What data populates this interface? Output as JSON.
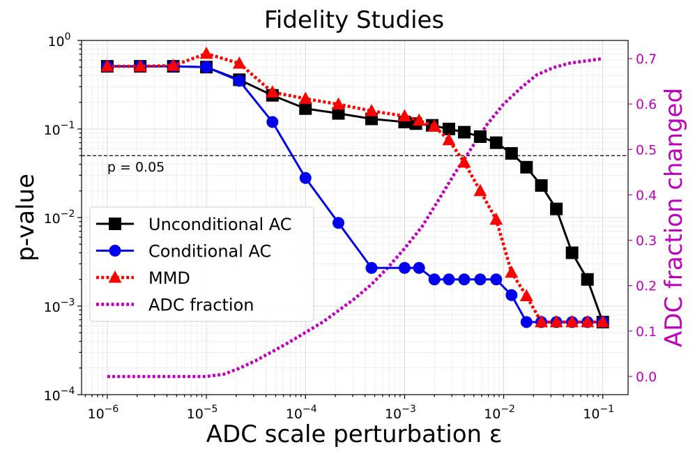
{
  "chart_data": {
    "type": "line",
    "title": "Fidelity Studies",
    "xlabel": "ADC scale perturbation ε",
    "ylabel": "p-value",
    "y2label": "ADC fraction changed",
    "xscale": "log",
    "yscale": "log",
    "xlim": [
      5.5e-07,
      0.18
    ],
    "ylim": [
      0.0001,
      1
    ],
    "y2lim": [
      -0.04,
      0.74
    ],
    "grid": true,
    "legend_position": "center-left",
    "x_tick_labels": [
      {
        "value": 1e-06,
        "base": "10",
        "exp": "−6"
      },
      {
        "value": 1e-05,
        "base": "10",
        "exp": "−5"
      },
      {
        "value": 0.0001,
        "base": "10",
        "exp": "−4"
      },
      {
        "value": 0.001,
        "base": "10",
        "exp": "−3"
      },
      {
        "value": 0.01,
        "base": "10",
        "exp": "−2"
      },
      {
        "value": 0.1,
        "base": "10",
        "exp": "−1"
      }
    ],
    "y_tick_labels": [
      {
        "value": 1,
        "base": "10",
        "exp": "0"
      },
      {
        "value": 0.1,
        "base": "10",
        "exp": "−1"
      },
      {
        "value": 0.01,
        "base": "10",
        "exp": "−2"
      },
      {
        "value": 0.001,
        "base": "10",
        "exp": "−3"
      },
      {
        "value": 0.0001,
        "base": "10",
        "exp": "−4"
      }
    ],
    "y2_tick_labels": [
      "0.0",
      "0.1",
      "0.2",
      "0.3",
      "0.4",
      "0.5",
      "0.6",
      "0.7"
    ],
    "y2_tick_values": [
      0.0,
      0.1,
      0.2,
      0.3,
      0.4,
      0.5,
      0.6,
      0.7
    ],
    "reference_line": {
      "value": 0.05,
      "label": "p = 0.05"
    },
    "series": [
      {
        "name": "Unconditional AC",
        "color": "#000000",
        "marker": "square",
        "linestyle": "solid",
        "axis": "left",
        "x": [
          1e-06,
          2.15e-06,
          4.64e-06,
          1e-05,
          2.15e-05,
          4.64e-05,
          0.0001,
          0.000215,
          0.000464,
          0.001,
          0.0013,
          0.0019,
          0.0028,
          0.004,
          0.0058,
          0.0084,
          0.012,
          0.017,
          0.024,
          0.034,
          0.049,
          0.07,
          0.1
        ],
        "values": [
          0.51,
          0.51,
          0.51,
          0.5,
          0.36,
          0.24,
          0.17,
          0.15,
          0.13,
          0.12,
          0.115,
          0.11,
          0.1,
          0.092,
          0.082,
          0.07,
          0.053,
          0.037,
          0.023,
          0.0125,
          0.004,
          0.002,
          0.00066
        ]
      },
      {
        "name": "Conditional AC",
        "color": "#0000ee",
        "marker": "circle",
        "linestyle": "solid",
        "axis": "left",
        "x": [
          1e-06,
          2.15e-06,
          4.64e-06,
          1e-05,
          2.15e-05,
          4.64e-05,
          0.0001,
          0.000215,
          0.000464,
          0.001,
          0.0014,
          0.002,
          0.0028,
          0.004,
          0.0058,
          0.0084,
          0.012,
          0.017,
          0.024,
          0.034,
          0.049,
          0.07,
          0.1
        ],
        "values": [
          0.51,
          0.51,
          0.51,
          0.5,
          0.35,
          0.12,
          0.028,
          0.0087,
          0.0027,
          0.0027,
          0.0027,
          0.002,
          0.002,
          0.002,
          0.002,
          0.002,
          0.00133,
          0.00066,
          0.00066,
          0.00066,
          0.00066,
          0.00066,
          0.00066
        ]
      },
      {
        "name": "MMD",
        "color": "#ff0000",
        "marker": "triangle",
        "linestyle": "dotted",
        "axis": "left",
        "x": [
          1e-06,
          2.15e-06,
          4.64e-06,
          1e-05,
          2.15e-05,
          4.64e-05,
          0.0001,
          0.000215,
          0.000464,
          0.001,
          0.0014,
          0.002,
          0.0028,
          0.004,
          0.0058,
          0.0084,
          0.012,
          0.017,
          0.024,
          0.034,
          0.049,
          0.07,
          0.1
        ],
        "values": [
          0.51,
          0.51,
          0.52,
          0.71,
          0.55,
          0.26,
          0.22,
          0.19,
          0.16,
          0.14,
          0.125,
          0.107,
          0.075,
          0.042,
          0.02,
          0.0095,
          0.0024,
          0.0013,
          0.00066,
          0.00066,
          0.00066,
          0.00066,
          0.00066
        ]
      },
      {
        "name": "ADC fraction",
        "color": "#bf00bf",
        "marker": "none",
        "linestyle": "dotted",
        "axis": "right",
        "x": [
          1e-06,
          1.5e-06,
          2.15e-06,
          3.16e-06,
          4.64e-06,
          6.8e-06,
          1e-05,
          1.5e-05,
          2.15e-05,
          3.16e-05,
          4.64e-05,
          6.8e-05,
          0.0001,
          0.00015,
          0.000215,
          0.000316,
          0.000464,
          0.00068,
          0.001,
          0.0015,
          0.00215,
          0.00316,
          0.00464,
          0.0068,
          0.01,
          0.015,
          0.0215,
          0.0316,
          0.0464,
          0.068,
          0.1
        ],
        "values": [
          0.0,
          0.0,
          0.0,
          0.0,
          0.0,
          0.0,
          0.0,
          0.005,
          0.018,
          0.035,
          0.055,
          0.075,
          0.097,
          0.12,
          0.145,
          0.172,
          0.203,
          0.24,
          0.282,
          0.33,
          0.385,
          0.445,
          0.5,
          0.555,
          0.6,
          0.636,
          0.664,
          0.68,
          0.69,
          0.695,
          0.7
        ]
      }
    ]
  }
}
